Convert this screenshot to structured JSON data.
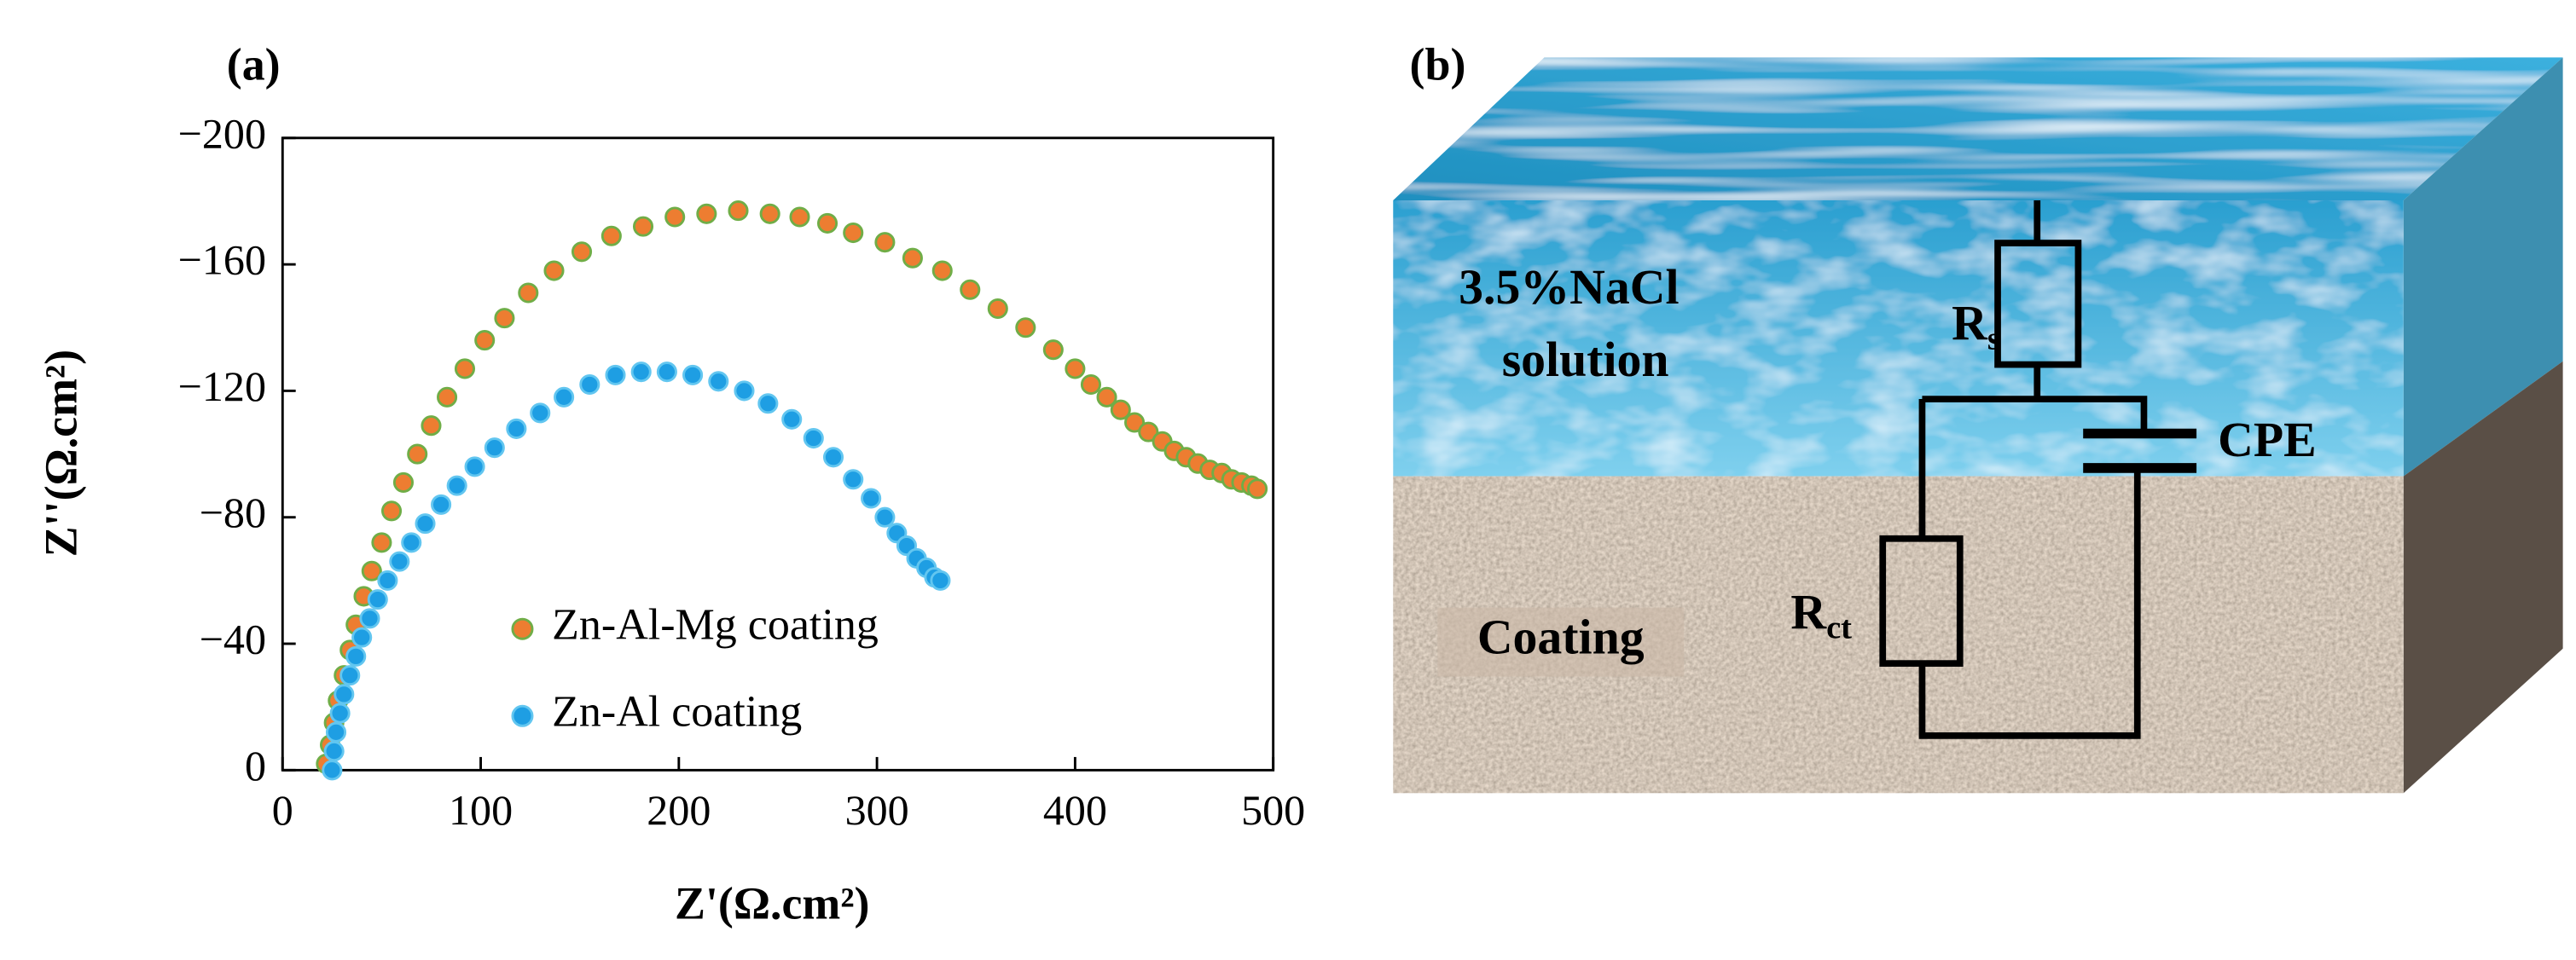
{
  "chart_data": {
    "type": "scatter",
    "title": "(a)",
    "xlabel": "Z'(Ω.cm²)",
    "ylabel": "Z''(Ω.cm²)",
    "xlim": [
      0,
      500
    ],
    "ylim": [
      0,
      -200
    ],
    "xticks": [
      0,
      100,
      200,
      300,
      400,
      500
    ],
    "yticks": [
      0,
      {
        "value": -40,
        "label": "−40"
      },
      {
        "value": -80,
        "label": "−80"
      },
      {
        "value": -120,
        "label": "−120"
      },
      {
        "value": -160,
        "label": "−160"
      },
      {
        "value": -200,
        "label": "−200"
      }
    ],
    "grid": false,
    "legend": "lower center",
    "series": [
      {
        "name": "Zn-Al-Mg coating",
        "color": "#ed7d31",
        "edgecolor": "#70ad47",
        "x": [
          22,
          24,
          26,
          28,
          31,
          34,
          37,
          41,
          45,
          50,
          55,
          61,
          68,
          75,
          83,
          92,
          102,
          112,
          124,
          137,
          151,
          166,
          182,
          198,
          214,
          230,
          246,
          261,
          275,
          288,
          304,
          318,
          333,
          347,
          361,
          375,
          389,
          400,
          408,
          416,
          423,
          430,
          437,
          444,
          450,
          456,
          462,
          468,
          474,
          479,
          484,
          489,
          492
        ],
        "values": [
          -2,
          -8,
          -15,
          -22,
          -30,
          -38,
          -46,
          -55,
          -63,
          -72,
          -82,
          -91,
          -100,
          -109,
          -118,
          -127,
          -136,
          -143,
          -151,
          -158,
          -164,
          -169,
          -172,
          -175,
          -176,
          -177,
          -176,
          -175,
          -173,
          -170,
          -167,
          -162,
          -158,
          -152,
          -146,
          -140,
          -133,
          -127,
          -122,
          -118,
          -114,
          -110,
          -107,
          -104,
          -101,
          -99,
          -97,
          -95,
          -94,
          -92,
          -91,
          -90,
          -89
        ]
      },
      {
        "name": "Zn-Al coating",
        "color": "#1e9ee3",
        "edgecolor": "#62c6f0",
        "x": [
          25,
          26,
          27,
          29,
          31,
          34,
          37,
          40,
          44,
          48,
          53,
          59,
          65,
          72,
          80,
          88,
          97,
          107,
          118,
          130,
          142,
          155,
          168,
          181,
          194,
          207,
          220,
          233,
          245,
          257,
          268,
          278,
          288,
          297,
          304,
          310,
          315,
          320,
          325,
          329,
          332
        ],
        "values": [
          0,
          -6,
          -12,
          -18,
          -24,
          -30,
          -36,
          -42,
          -48,
          -54,
          -60,
          -66,
          -72,
          -78,
          -84,
          -90,
          -96,
          -102,
          -108,
          -113,
          -118,
          -122,
          -125,
          -126,
          -126,
          -125,
          -123,
          -120,
          -116,
          -111,
          -105,
          -99,
          -92,
          -86,
          -80,
          -75,
          -71,
          -67,
          -64,
          -61,
          -60
        ]
      }
    ]
  },
  "diagram": {
    "label": "(b)",
    "solution_label": [
      "3.5%NaCl",
      "solution"
    ],
    "coating_label": "Coating",
    "components": [
      {
        "symbol": "R",
        "subscript": "s"
      },
      {
        "symbol": "CPE"
      },
      {
        "symbol": "R",
        "subscript": "ct"
      }
    ]
  }
}
